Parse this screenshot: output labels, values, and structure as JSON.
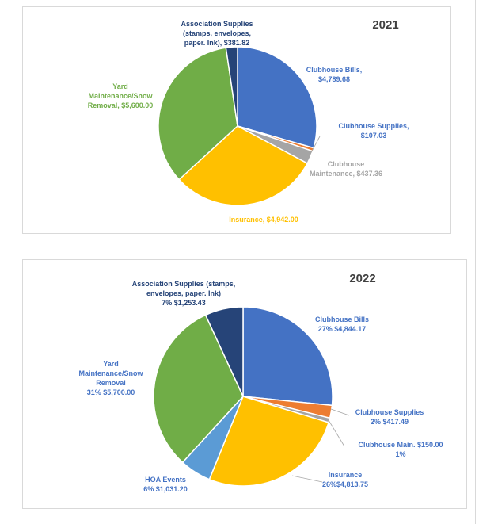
{
  "charts": [
    {
      "type": "pie",
      "title": "2021",
      "slices": [
        {
          "name": "Clubhouse Bills",
          "value": 4789.68,
          "color": "#4472C4",
          "label_lines": [
            "Clubhouse Bills,",
            "$4,789.68"
          ]
        },
        {
          "name": "Clubhouse Supplies",
          "value": 107.03,
          "color": "#ED7D31",
          "label_lines": [
            "Clubhouse Supplies,",
            "$107.03"
          ]
        },
        {
          "name": "Clubhouse Maintenance",
          "value": 437.36,
          "color": "#A5A5A5",
          "label_lines": [
            "Clubhouse",
            "Maintenance, $437.36"
          ]
        },
        {
          "name": "Insurance",
          "value": 4942.0,
          "color": "#FFC000",
          "label_lines": [
            "Insurance, $4,942.00"
          ]
        },
        {
          "name": "Yard Maintenance/Snow Removal",
          "value": 5600.0,
          "color": "#70AD47",
          "label_lines": [
            "Yard",
            "Maintenance/Snow",
            "Removal, $5,600.00"
          ]
        },
        {
          "name": "Association Supplies",
          "value": 381.82,
          "color": "#264478",
          "label_lines": [
            "Association Supplies",
            "(stamps, envelopes,",
            "paper. Ink), $381.82"
          ]
        }
      ]
    },
    {
      "type": "pie",
      "title": "2022",
      "slices": [
        {
          "name": "Clubhouse Bills",
          "value": 4844.17,
          "color": "#4472C4",
          "label_lines": [
            "Clubhouse Bills",
            "27% $4,844.17"
          ]
        },
        {
          "name": "Clubhouse Supplies",
          "value": 417.49,
          "color": "#ED7D31",
          "label_lines": [
            "Clubhouse Supplies",
            "2% $417.49"
          ]
        },
        {
          "name": "Clubhouse Main.",
          "value": 150.0,
          "color": "#A5A5A5",
          "label_lines": [
            "Clubhouse Main. $150.00",
            "1%"
          ]
        },
        {
          "name": "Insurance",
          "value": 4813.75,
          "color": "#FFC000",
          "label_lines": [
            "Insurance",
            "26%$4,813.75"
          ]
        },
        {
          "name": "HOA Events",
          "value": 1031.2,
          "color": "#5B9BD5",
          "label_lines": [
            "HOA Events",
            "6% $1,031.20"
          ]
        },
        {
          "name": "Yard Maintenance/Snow Removal",
          "value": 5700.0,
          "color": "#70AD47",
          "label_lines": [
            "Yard",
            "Maintenance/Snow",
            "Removal",
            "31% $5,700.00"
          ]
        },
        {
          "name": "Association Supplies",
          "value": 1253.43,
          "color": "#264478",
          "label_lines": [
            "Association Supplies (stamps,",
            "envelopes, paper. Ink)",
            "7% $1,253.43"
          ]
        }
      ]
    }
  ],
  "chart_data": [
    {
      "type": "pie",
      "title": "2021",
      "categories": [
        "Clubhouse Bills",
        "Clubhouse Supplies",
        "Clubhouse Maintenance",
        "Insurance",
        "Yard Maintenance/Snow Removal",
        "Association Supplies (stamps, envelopes, paper. Ink)"
      ],
      "values": [
        4789.68,
        107.03,
        437.36,
        4942.0,
        5600.0,
        381.82
      ]
    },
    {
      "type": "pie",
      "title": "2022",
      "categories": [
        "Clubhouse Bills",
        "Clubhouse Supplies",
        "Clubhouse Main.",
        "Insurance",
        "HOA Events",
        "Yard Maintenance/Snow Removal",
        "Association Supplies (stamps, envelopes, paper. Ink)"
      ],
      "values": [
        4844.17,
        417.49,
        150.0,
        4813.75,
        1031.2,
        5700.0,
        1253.43
      ],
      "percents": [
        27,
        2,
        1,
        26,
        6,
        31,
        7
      ]
    }
  ]
}
